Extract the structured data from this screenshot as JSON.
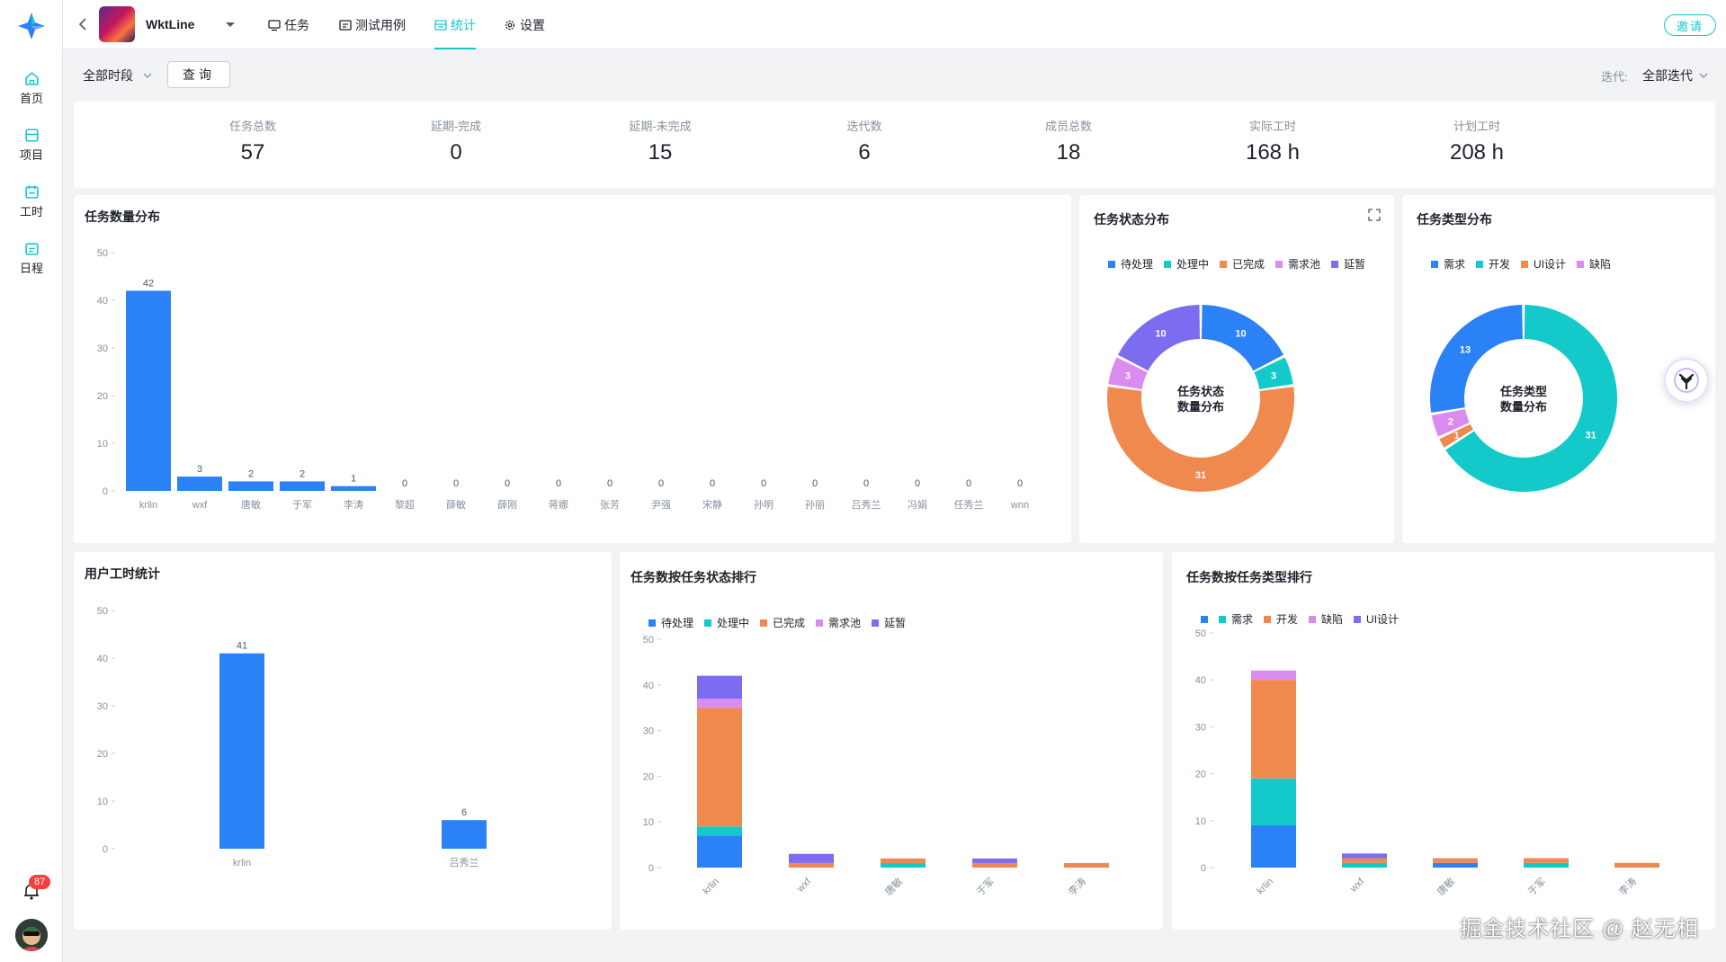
{
  "sidebar": {
    "items": [
      {
        "label": "首页",
        "icon": "home-icon"
      },
      {
        "label": "项目",
        "icon": "project-icon"
      },
      {
        "label": "工时",
        "icon": "worktime-icon"
      },
      {
        "label": "日程",
        "icon": "schedule-icon"
      }
    ],
    "notification_count": "87"
  },
  "header": {
    "project_name": "WktLine",
    "tabs": [
      {
        "label": "任务",
        "icon": "monitor-icon"
      },
      {
        "label": "测试用例",
        "icon": "testcase-icon"
      },
      {
        "label": "统计",
        "icon": "chart-icon"
      },
      {
        "label": "设置",
        "icon": "gear-icon"
      }
    ],
    "active_tab": "统计",
    "invite_label": "邀请"
  },
  "filters": {
    "time_range": "全部时段",
    "query_label": "查询",
    "iteration_label": "迭代:",
    "iteration_value": "全部迭代"
  },
  "stats": [
    {
      "label": "任务总数",
      "value": "57"
    },
    {
      "label": "延期-完成",
      "value": "0"
    },
    {
      "label": "延期-未完成",
      "value": "15"
    },
    {
      "label": "迭代数",
      "value": "6"
    },
    {
      "label": "成员总数",
      "value": "18"
    },
    {
      "label": "实际工时",
      "value": "168 h"
    },
    {
      "label": "计划工时",
      "value": "208 h"
    }
  ],
  "colors": {
    "blue": "#2b82f6",
    "cyan": "#14c9c9",
    "orange": "#f0894e",
    "lilac": "#d98bf0",
    "purple": "#7b6cf0",
    "accent": "#14c9c9"
  },
  "chart_data": [
    {
      "id": "task-count",
      "type": "bar",
      "title": "任务数量分布",
      "categories": [
        "krlin",
        "wxf",
        "唐敏",
        "于军",
        "李涛",
        "黎超",
        "薛敏",
        "薛刚",
        "蒋娜",
        "张芳",
        "尹强",
        "宋静",
        "孙明",
        "孙丽",
        "吕秀兰",
        "冯娟",
        "任秀兰",
        "wnn"
      ],
      "values": [
        42,
        3,
        2,
        2,
        1,
        0,
        0,
        0,
        0,
        0,
        0,
        0,
        0,
        0,
        0,
        0,
        0,
        0
      ],
      "ylim": [
        0,
        50
      ],
      "yticks": [
        0,
        10,
        20,
        30,
        40,
        50
      ]
    },
    {
      "id": "task-status",
      "type": "pie",
      "title": "任务状态分布",
      "center_label": [
        "任务状态",
        "数量分布"
      ],
      "labels": [
        "待处理",
        "处理中",
        "已完成",
        "需求池",
        "延暂"
      ],
      "values": [
        10,
        3,
        31,
        3,
        10
      ]
    },
    {
      "id": "task-type",
      "type": "pie",
      "title": "任务类型分布",
      "center_label": [
        "任务类型",
        "数量分布"
      ],
      "labels": [
        "需求",
        "开发",
        "UI设计",
        "缺陷"
      ],
      "values": [
        13,
        31,
        1,
        2
      ]
    },
    {
      "id": "user-hours",
      "type": "bar",
      "title": "用户工时统计",
      "categories": [
        "krlin",
        "吕秀兰"
      ],
      "values": [
        41,
        6
      ],
      "ylim": [
        0,
        50
      ],
      "yticks": [
        0,
        10,
        20,
        30,
        40,
        50
      ]
    },
    {
      "id": "rank-status",
      "type": "bar",
      "stacked": true,
      "title": "任务数按任务状态排行",
      "categories": [
        "krlin",
        "wxf",
        "唐敏",
        "于军",
        "李涛"
      ],
      "series": [
        {
          "name": "待处理",
          "values": [
            7,
            0,
            0,
            0,
            0
          ]
        },
        {
          "name": "处理中",
          "values": [
            2,
            0,
            1,
            0,
            0
          ]
        },
        {
          "name": "已完成",
          "values": [
            26,
            1,
            1,
            1,
            1
          ]
        },
        {
          "name": "需求池",
          "values": [
            2,
            0,
            0,
            0,
            0
          ]
        },
        {
          "name": "延暂",
          "values": [
            5,
            2,
            0,
            1,
            0
          ]
        }
      ],
      "ylim": [
        0,
        50
      ],
      "yticks": [
        0,
        10,
        20,
        30,
        40,
        50
      ]
    },
    {
      "id": "rank-type",
      "type": "bar",
      "stacked": true,
      "title": "任务数按任务类型排行",
      "categories": [
        "krlin",
        "wxf",
        "唐敏",
        "于军",
        "李涛"
      ],
      "series": [
        {
          "name": "",
          "values": [
            9,
            0,
            1,
            0,
            0
          ]
        },
        {
          "name": "需求",
          "values": [
            10,
            1,
            0,
            1,
            0
          ]
        },
        {
          "name": "开发",
          "values": [
            21,
            1,
            1,
            1,
            1
          ]
        },
        {
          "name": "缺陷",
          "values": [
            2,
            0,
            0,
            0,
            0
          ]
        },
        {
          "name": "UI设计",
          "values": [
            0,
            1,
            0,
            0,
            0
          ]
        }
      ],
      "ylim": [
        0,
        50
      ],
      "yticks": [
        0,
        10,
        20,
        30,
        40,
        50
      ]
    }
  ],
  "watermark": "掘金技术社区 @ 赵无相"
}
